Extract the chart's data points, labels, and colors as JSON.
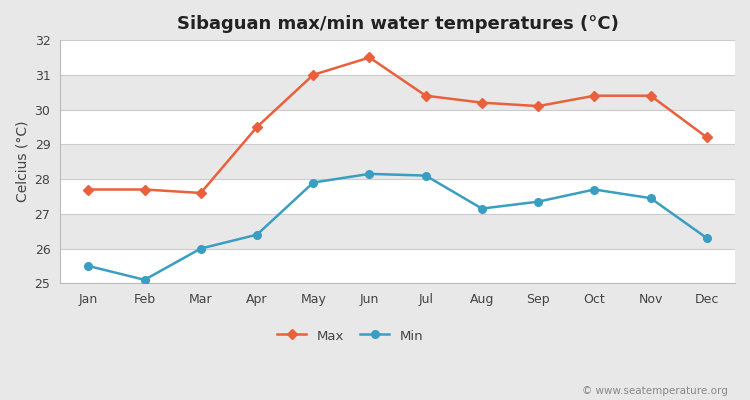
{
  "title": "Sibaguan max/min water temperatures (°C)",
  "ylabel": "Celcius (°C)",
  "months": [
    "Jan",
    "Feb",
    "Mar",
    "Apr",
    "May",
    "Jun",
    "Jul",
    "Aug",
    "Sep",
    "Oct",
    "Nov",
    "Dec"
  ],
  "max_temps": [
    27.7,
    27.7,
    27.6,
    29.5,
    31.0,
    31.5,
    30.4,
    30.2,
    30.1,
    30.4,
    30.4,
    29.2
  ],
  "min_temps": [
    25.5,
    25.1,
    26.0,
    26.4,
    27.9,
    28.15,
    28.1,
    27.15,
    27.35,
    27.7,
    27.45,
    26.3
  ],
  "max_color": "#e8603c",
  "min_color": "#3a9ec2",
  "bg_color": "#e8e8e8",
  "plot_bg_white": "#ffffff",
  "plot_bg_gray": "#e8e8e8",
  "grid_color": "#cccccc",
  "ylim": [
    25,
    32
  ],
  "yticks": [
    25,
    26,
    27,
    28,
    29,
    30,
    31,
    32
  ],
  "watermark": "© www.seatemperature.org",
  "legend_max": "Max",
  "legend_min": "Min",
  "title_fontsize": 13,
  "axis_label_fontsize": 10,
  "tick_fontsize": 9,
  "watermark_fontsize": 7.5
}
